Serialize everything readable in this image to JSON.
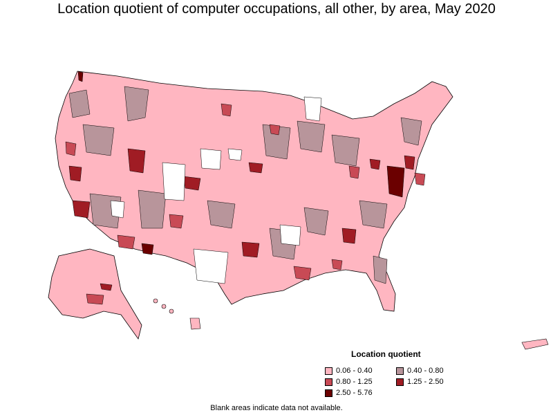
{
  "title": "Location quotient of computer occupations, all other, by area, May 2020",
  "legend": {
    "title": "Location quotient",
    "items": [
      {
        "label": "0.06 - 0.40",
        "color": "#ffb6c1"
      },
      {
        "label": "0.40 - 0.80",
        "color": "#b8959b"
      },
      {
        "label": "0.80 - 1.25",
        "color": "#c84a55"
      },
      {
        "label": "1.25 - 2.50",
        "color": "#a01c24"
      },
      {
        "label": "2.50 - 5.76",
        "color": "#6b0000"
      }
    ]
  },
  "footnote": "Blank areas indicate data not available.",
  "colors": {
    "border": "#000000",
    "no_data": "#ffffff"
  }
}
